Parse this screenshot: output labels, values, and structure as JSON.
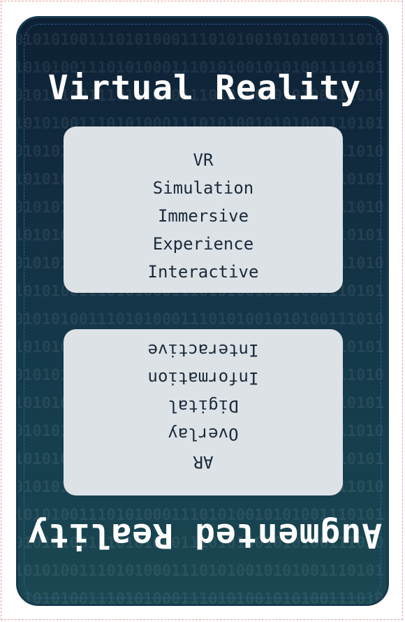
{
  "vr_card": {
    "title": "Virtual Reality",
    "keywords": [
      "VR",
      "Simulation",
      "Immersive",
      "Experience",
      "Interactive"
    ]
  },
  "ar_card": {
    "title": "Augmented Reality",
    "keywords": [
      "AR",
      "Overlay",
      "Digital",
      "Information",
      "Interactive"
    ]
  },
  "background": {
    "binary_rows": [
      "0101010011101010001110101001010100111010",
      "1010100111010100011101010010101001110101",
      "0101010011101010001110101001010100111010",
      "1010100111010100011101010010101001110101",
      "0101010011101010001110101001010100111010",
      "1010100111010100011101010010101001110101",
      "0101010011101010001110101001010100111010",
      "1010100111010100011101010010101001110101",
      "0101010011101010001110101001010100111010",
      "1010100111010100011101010010101001110101",
      "0101010011101010001110101001010100111010",
      "1010100111010100011101010010101001110101",
      "0101010011101010001110101001010100111010",
      "1010100111010100011101010010101001110101",
      "0101010011101010001110101001010100111010",
      "1010100111010100011101010010101001110101",
      "0101010011101010001110101001010100111010",
      "1010100111010100011101010010101001110101",
      "0101010011101010001110101001010100111010",
      "1010100111010100011101010010101001110101",
      "0101010011101010001110101001010100111010"
    ]
  },
  "colors": {
    "card_top": "#0e2034",
    "card_bottom": "#1a4852",
    "panel": "#dde2e6",
    "text_dark": "#1a2a3a",
    "title": "#ffffff"
  }
}
